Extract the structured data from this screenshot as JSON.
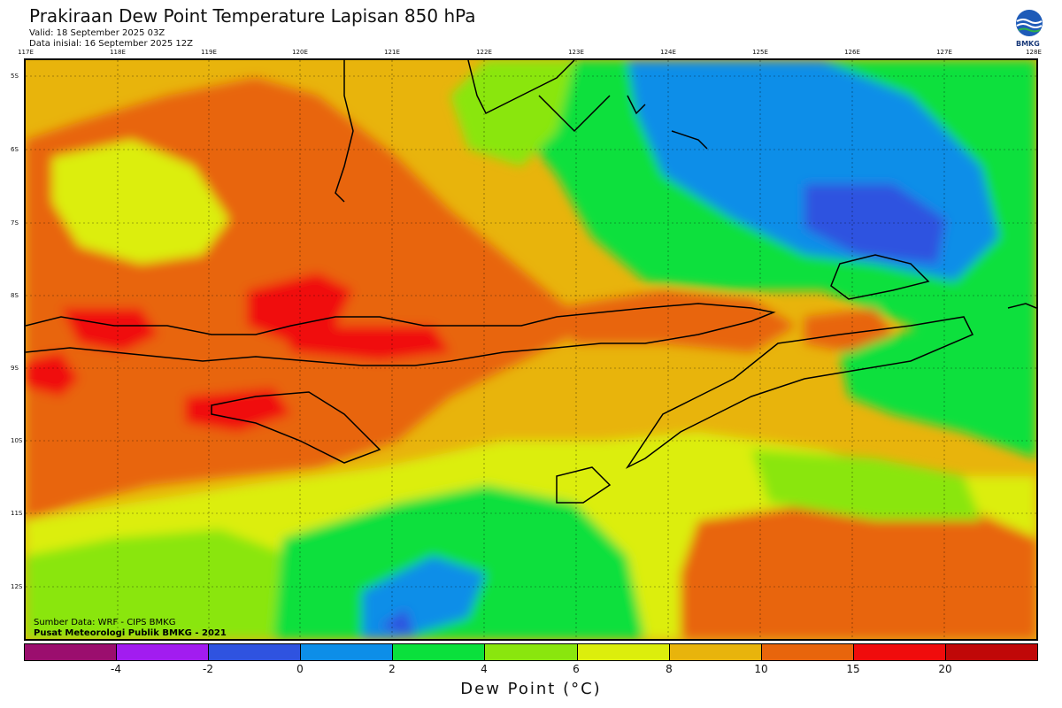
{
  "header": {
    "title": "Prakiraan Dew Point Temperature Lapisan 850 hPa",
    "valid": "Valid: 18 September 2025 03Z",
    "init": "Data inisial: 16 September 2025 12Z",
    "logo_text": "BMKG"
  },
  "map": {
    "lon_labels": [
      "117E",
      "118E",
      "119E",
      "120E",
      "121E",
      "122E",
      "123E",
      "124E",
      "125E",
      "126E",
      "127E",
      "128E"
    ],
    "lat_labels": [
      "5S",
      "6S",
      "7S",
      "8S",
      "9S",
      "10S",
      "11S",
      "12S"
    ]
  },
  "footer": {
    "source": "Sumber Data: WRF - CIPS BMKG",
    "center": "Pusat Meteorologi Publik BMKG - 2021"
  },
  "colorbar": {
    "title": "Dew Point (°C)",
    "ticks": [
      "-4",
      "-2",
      "0",
      "2",
      "4",
      "6",
      "8",
      "10",
      "15",
      "20"
    ],
    "colors": [
      "#9b0e6e",
      "#a21cf0",
      "#2f53e0",
      "#0d8ee8",
      "#0ae03c",
      "#8ae60e",
      "#dcee0c",
      "#e8b40c",
      "#e8650c",
      "#f00c0c",
      "#c00808"
    ]
  }
}
